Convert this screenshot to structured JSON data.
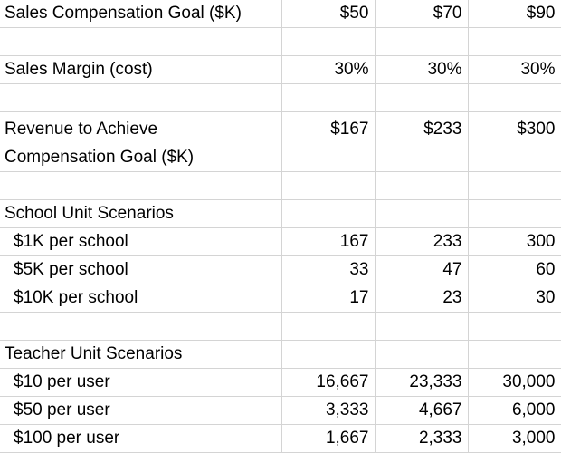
{
  "table": {
    "rows": [
      [
        "Sales Compensation Goal ($K)",
        "$50",
        "$70",
        "$90"
      ],
      [
        "Sales Margin (cost)",
        "30%",
        "30%",
        "30%"
      ],
      [
        "Revenue to Achieve Compensation Goal ($K)",
        "$167",
        "$233",
        "$300"
      ],
      [
        "School Unit Scenarios"
      ],
      [
        "$1K per school",
        "167",
        "233",
        "300"
      ],
      [
        "$5K per school",
        "33",
        "47",
        "60"
      ],
      [
        "$10K per school",
        "17",
        "23",
        "30"
      ],
      [
        "Teacher Unit Scenarios"
      ],
      [
        "$10 per user",
        "16,667",
        "23,333",
        "30,000"
      ],
      [
        "$50 per user",
        "3,333",
        "4,667",
        "6,000"
      ],
      [
        "$100 per user",
        "1,667",
        "2,333",
        "3,000"
      ]
    ]
  }
}
